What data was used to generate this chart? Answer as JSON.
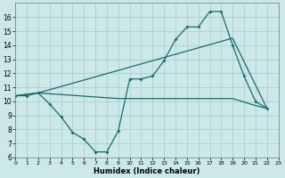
{
  "xlabel": "Humidex (Indice chaleur)",
  "background_color": "#cce8e8",
  "grid_color": "#aacfcf",
  "line_color": "#1a6b6b",
  "line1_x": [
    0,
    1,
    2,
    3,
    4,
    5,
    6,
    7,
    8,
    9,
    10,
    11,
    12,
    13,
    14,
    15,
    16,
    17,
    18,
    19,
    20,
    21,
    22
  ],
  "line1_y": [
    10.4,
    10.4,
    10.6,
    9.8,
    8.9,
    7.8,
    7.3,
    6.4,
    6.4,
    7.9,
    11.6,
    11.6,
    11.8,
    12.9,
    14.4,
    15.3,
    15.3,
    16.4,
    16.4,
    14.0,
    11.8,
    10.0,
    9.5
  ],
  "line2_x": [
    0,
    2,
    19,
    22
  ],
  "line2_y": [
    10.4,
    10.6,
    14.5,
    9.5
  ],
  "line3_x": [
    0,
    2,
    9,
    19,
    21,
    22
  ],
  "line3_y": [
    10.4,
    10.6,
    10.2,
    10.2,
    9.7,
    9.5
  ],
  "xlim": [
    0,
    23
  ],
  "ylim": [
    6,
    17
  ],
  "yticks": [
    6,
    7,
    8,
    9,
    10,
    11,
    12,
    13,
    14,
    15,
    16
  ],
  "xticks": [
    0,
    1,
    2,
    3,
    4,
    5,
    6,
    7,
    8,
    9,
    10,
    11,
    12,
    13,
    14,
    15,
    16,
    17,
    18,
    19,
    20,
    21,
    22,
    23
  ]
}
